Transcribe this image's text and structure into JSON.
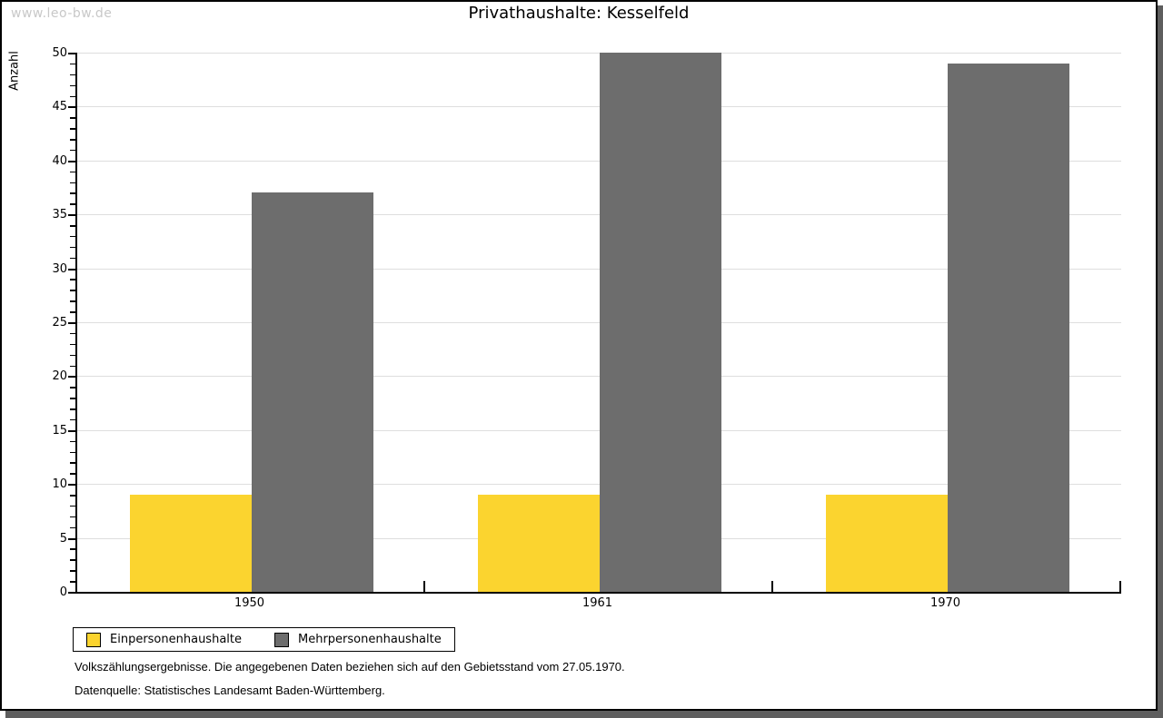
{
  "watermark": "www.leo-bw.de",
  "footnotes": [
    "Volkszählungsergebnisse. Die angegebenen Daten beziehen sich auf den Gebietsstand vom 27.05.1970.",
    "Datenquelle: Statistisches Landesamt Baden-Württemberg."
  ],
  "colors": {
    "watermark": "#c8c8c8",
    "border": "#000000",
    "shadow": "#5e5e5e",
    "gridline": "#dedede",
    "background": "#ffffff"
  },
  "chart_data": {
    "type": "bar",
    "title": "Privathaushalte: Kesselfeld",
    "categories": [
      "1950",
      "1961",
      "1970"
    ],
    "series": [
      {
        "name": "Einpersonenhaushalte",
        "color": "#fbd42f",
        "values": [
          9,
          9,
          9
        ]
      },
      {
        "name": "Mehrpersonenhaushalte",
        "color": "#6d6d6d",
        "values": [
          37,
          50,
          49
        ]
      }
    ],
    "xlabel": "",
    "ylabel": "Anzahl",
    "ylim": [
      0,
      50
    ],
    "yticks": [
      0,
      5,
      10,
      15,
      20,
      25,
      30,
      35,
      40,
      45,
      50
    ],
    "minor_tick_step": 1,
    "grid": "horizontal-major",
    "legend_position": "bottom-left"
  }
}
